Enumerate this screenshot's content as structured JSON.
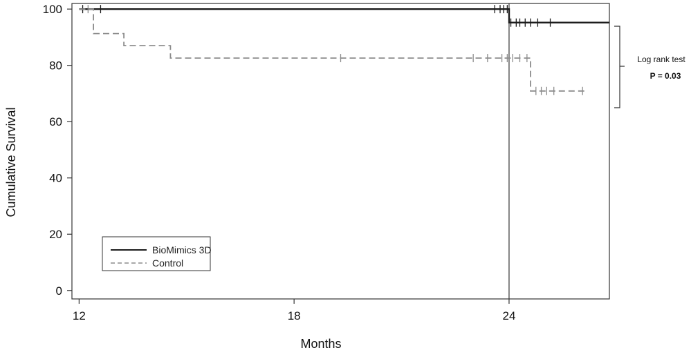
{
  "chart_data": {
    "type": "line",
    "subtype": "kaplan-meier",
    "xlabel": "Months",
    "ylabel": "Cumulative Survival",
    "xlim": [
      11.8,
      26.8
    ],
    "ylim": [
      -3,
      102
    ],
    "xticks": [
      12,
      18,
      24
    ],
    "yticks": [
      0,
      20,
      40,
      60,
      80,
      100
    ],
    "reference_line_x": 24,
    "legend_position": "bottom-left",
    "series": [
      {
        "name": "BioMimics 3D",
        "color": "#1a1a1a",
        "style": "solid",
        "steps": [
          [
            12.0,
            100
          ],
          [
            24.0,
            100
          ],
          [
            24.0,
            95.2
          ],
          [
            26.8,
            95.2
          ]
        ],
        "censor_x": [
          12.1,
          12.6,
          23.6,
          23.75,
          23.85,
          23.95,
          24.05,
          24.2,
          24.3,
          24.45,
          24.6,
          24.8,
          25.15
        ]
      },
      {
        "name": "Control",
        "color": "#8c8c8c",
        "style": "dashed",
        "steps": [
          [
            12.0,
            100
          ],
          [
            12.4,
            100
          ],
          [
            12.4,
            91.3
          ],
          [
            13.25,
            91.3
          ],
          [
            13.25,
            87.0
          ],
          [
            14.55,
            87.0
          ],
          [
            14.55,
            82.6
          ],
          [
            24.6,
            82.6
          ],
          [
            24.6,
            70.9
          ],
          [
            26.1,
            70.9
          ]
        ],
        "censor_x": [
          12.25,
          19.3,
          23.0,
          23.4,
          23.8,
          23.95,
          24.1,
          24.3,
          24.5,
          24.75,
          24.9,
          25.05,
          25.25,
          26.05
        ]
      }
    ],
    "annotation": {
      "line1": "Log rank test",
      "line2": "P = 0.03"
    }
  }
}
